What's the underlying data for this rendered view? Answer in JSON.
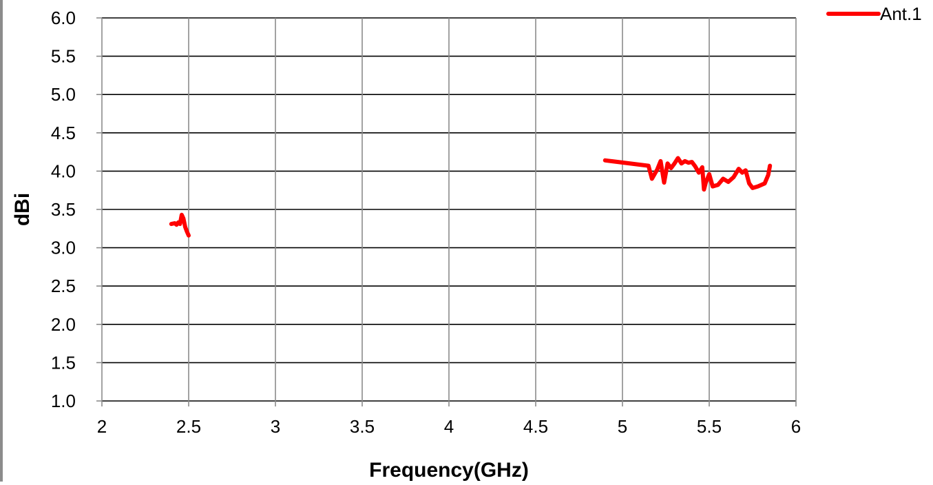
{
  "chart_data": {
    "type": "line",
    "title": "",
    "xlabel": "Frequency(GHz)",
    "ylabel": "dBi",
    "xlim": [
      2,
      6
    ],
    "ylim": [
      1.0,
      6.0
    ],
    "x_ticks": [
      2,
      2.5,
      3,
      3.5,
      4,
      4.5,
      5,
      5.5,
      6
    ],
    "x_tick_labels": [
      "2",
      "2.5",
      "3",
      "3.5",
      "4",
      "4.5",
      "5",
      "5.5",
      "6"
    ],
    "y_ticks": [
      1.0,
      1.5,
      2.0,
      2.5,
      3.0,
      3.5,
      4.0,
      4.5,
      5.0,
      5.5,
      6.0
    ],
    "y_tick_labels": [
      "1.0",
      "1.5",
      "2.0",
      "2.5",
      "3.0",
      "3.5",
      "4.0",
      "4.5",
      "5.0",
      "5.5",
      "6.0"
    ],
    "grid": true,
    "legend_position": "top-right",
    "series": [
      {
        "name": "Ant.1",
        "color": "#ff0000",
        "segments": [
          [
            [
              2.4,
              3.31
            ],
            [
              2.42,
              3.32
            ],
            [
              2.43,
              3.3
            ],
            [
              2.44,
              3.33
            ],
            [
              2.45,
              3.31
            ],
            [
              2.46,
              3.43
            ],
            [
              2.47,
              3.38
            ],
            [
              2.48,
              3.27
            ],
            [
              2.49,
              3.21
            ],
            [
              2.5,
              3.16
            ]
          ],
          [
            [
              4.9,
              4.14
            ],
            [
              5.15,
              4.07
            ],
            [
              5.17,
              3.9
            ],
            [
              5.2,
              4.02
            ],
            [
              5.22,
              4.13
            ],
            [
              5.24,
              3.85
            ],
            [
              5.26,
              4.1
            ],
            [
              5.28,
              4.04
            ],
            [
              5.3,
              4.1
            ],
            [
              5.32,
              4.17
            ],
            [
              5.34,
              4.1
            ],
            [
              5.36,
              4.13
            ],
            [
              5.38,
              4.11
            ],
            [
              5.4,
              4.12
            ],
            [
              5.42,
              4.06
            ],
            [
              5.44,
              3.98
            ],
            [
              5.46,
              4.05
            ],
            [
              5.47,
              3.76
            ],
            [
              5.48,
              3.85
            ],
            [
              5.5,
              3.96
            ],
            [
              5.52,
              3.8
            ],
            [
              5.55,
              3.82
            ],
            [
              5.58,
              3.9
            ],
            [
              5.61,
              3.86
            ],
            [
              5.64,
              3.92
            ],
            [
              5.67,
              4.03
            ],
            [
              5.69,
              3.98
            ],
            [
              5.71,
              4.01
            ],
            [
              5.73,
              3.84
            ],
            [
              5.75,
              3.78
            ],
            [
              5.78,
              3.8
            ],
            [
              5.82,
              3.84
            ],
            [
              5.84,
              3.95
            ],
            [
              5.85,
              4.07
            ]
          ]
        ]
      }
    ]
  }
}
